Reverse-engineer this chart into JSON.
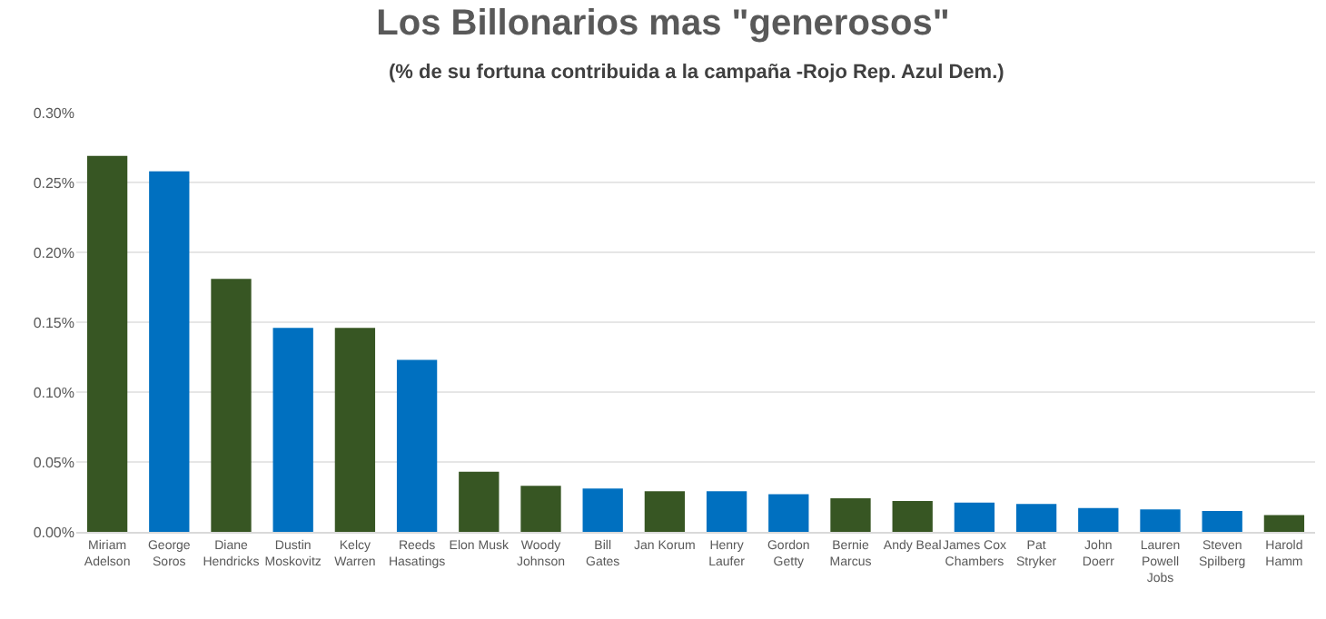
{
  "chart_data": {
    "type": "bar",
    "title": "Los Billonarios mas \"generosos\"",
    "subtitle": "(% de su fortuna contribuida a la campaña -Rojo Rep. Azul Dem.)",
    "categories": [
      "Miriam Adelson",
      "George Soros",
      "Diane Hendricks",
      "Dustin Moskovitz",
      "Kelcy Warren",
      "Reeds Hasatings",
      "Elon Musk",
      "Woody Johnson",
      "Bill Gates",
      "Jan Korum",
      "Henry Laufer",
      "Gordon Getty",
      "Bernie Marcus",
      "Andy Beal",
      "James Cox Chambers",
      "Pat Stryker",
      "John Doerr",
      "Lauren Powell Jobs",
      "Steven Spilberg",
      "Harold Hamm"
    ],
    "values": [
      0.269,
      0.258,
      0.181,
      0.146,
      0.146,
      0.123,
      0.043,
      0.033,
      0.031,
      0.029,
      0.029,
      0.027,
      0.024,
      0.022,
      0.021,
      0.02,
      0.017,
      0.016,
      0.015,
      0.012
    ],
    "colors": [
      "#375623",
      "#0070c0",
      "#375623",
      "#0070c0",
      "#375623",
      "#0070c0",
      "#375623",
      "#375623",
      "#0070c0",
      "#375623",
      "#0070c0",
      "#0070c0",
      "#375623",
      "#375623",
      "#0070c0",
      "#0070c0",
      "#0070c0",
      "#0070c0",
      "#0070c0",
      "#375623"
    ],
    "ylim": [
      0,
      0.3
    ],
    "yticks": [
      {
        "value": 0,
        "label": "0.00%"
      },
      {
        "value": 0.05,
        "label": "0.05%"
      },
      {
        "value": 0.1,
        "label": "0.10%"
      },
      {
        "value": 0.15,
        "label": "0.15%"
      },
      {
        "value": 0.2,
        "label": "0.20%"
      },
      {
        "value": 0.25,
        "label": "0.25%"
      },
      {
        "value": 0.3,
        "label": "0.30%"
      }
    ],
    "grid": "y"
  }
}
